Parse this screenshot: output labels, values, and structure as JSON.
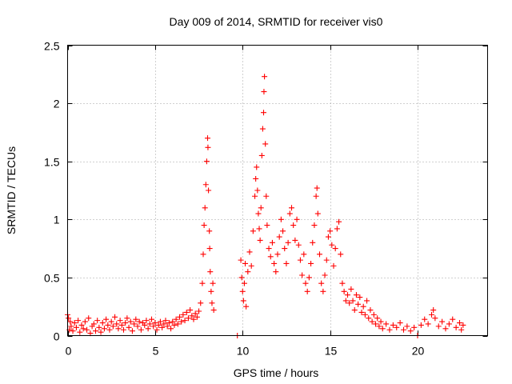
{
  "chart_data": {
    "type": "scatter",
    "title": "Day 009 of 2014, SRMTID for receiver vis0",
    "xlabel": "GPS time / hours",
    "ylabel": "SRMTID / TECUs",
    "xlim": [
      0,
      24
    ],
    "ylim": [
      0,
      2.5
    ],
    "x_ticks": [
      0,
      5,
      10,
      15,
      20
    ],
    "x_tick_labels": [
      "0",
      "5",
      "10",
      "15",
      "20"
    ],
    "y_ticks": [
      0,
      0.5,
      1,
      1.5,
      2,
      2.5
    ],
    "y_tick_labels": [
      "0",
      "0.5",
      "1",
      "1.5",
      "2",
      "2.5"
    ],
    "grid": true,
    "marker": "+",
    "series": [
      {
        "name": "SRMTID",
        "color": "#ff0000",
        "points": [
          [
            0.0,
            0.18
          ],
          [
            0.05,
            0.15
          ],
          [
            0.1,
            0.05
          ],
          [
            0.15,
            0.12
          ],
          [
            0.2,
            0.08
          ],
          [
            0.3,
            0.04
          ],
          [
            0.4,
            0.11
          ],
          [
            0.5,
            0.07
          ],
          [
            0.6,
            0.13
          ],
          [
            0.7,
            0.03
          ],
          [
            0.8,
            0.09
          ],
          [
            0.9,
            0.06
          ],
          [
            1.0,
            0.12
          ],
          [
            1.1,
            0.05
          ],
          [
            1.2,
            0.15
          ],
          [
            1.3,
            0.02
          ],
          [
            1.4,
            0.08
          ],
          [
            1.5,
            0.1
          ],
          [
            1.6,
            0.04
          ],
          [
            1.7,
            0.13
          ],
          [
            1.8,
            0.07
          ],
          [
            1.9,
            0.03
          ],
          [
            2.0,
            0.11
          ],
          [
            2.1,
            0.06
          ],
          [
            2.2,
            0.14
          ],
          [
            2.3,
            0.09
          ],
          [
            2.4,
            0.05
          ],
          [
            2.5,
            0.12
          ],
          [
            2.6,
            0.08
          ],
          [
            2.7,
            0.16
          ],
          [
            2.8,
            0.1
          ],
          [
            2.9,
            0.06
          ],
          [
            3.0,
            0.13
          ],
          [
            3.1,
            0.09
          ],
          [
            3.2,
            0.05
          ],
          [
            3.3,
            0.11
          ],
          [
            3.4,
            0.15
          ],
          [
            3.5,
            0.07
          ],
          [
            3.6,
            0.12
          ],
          [
            3.7,
            0.04
          ],
          [
            3.8,
            0.1
          ],
          [
            3.9,
            0.14
          ],
          [
            4.0,
            0.08
          ],
          [
            4.1,
            0.12
          ],
          [
            4.2,
            0.05
          ],
          [
            4.3,
            0.11
          ],
          [
            4.4,
            0.09
          ],
          [
            4.5,
            0.13
          ],
          [
            4.6,
            0.06
          ],
          [
            4.7,
            0.1
          ],
          [
            4.8,
            0.14
          ],
          [
            4.9,
            0.08
          ],
          [
            5.0,
            0.11
          ],
          [
            5.1,
            0.05
          ],
          [
            5.2,
            0.09
          ],
          [
            5.3,
            0.12
          ],
          [
            5.4,
            0.07
          ],
          [
            5.5,
            0.1
          ],
          [
            5.6,
            0.13
          ],
          [
            5.7,
            0.08
          ],
          [
            5.8,
            0.11
          ],
          [
            5.9,
            0.06
          ],
          [
            6.0,
            0.12
          ],
          [
            6.1,
            0.09
          ],
          [
            6.2,
            0.14
          ],
          [
            6.3,
            0.1
          ],
          [
            6.4,
            0.16
          ],
          [
            6.5,
            0.12
          ],
          [
            6.6,
            0.18
          ],
          [
            6.7,
            0.13
          ],
          [
            6.8,
            0.2
          ],
          [
            6.9,
            0.15
          ],
          [
            7.0,
            0.22
          ],
          [
            7.1,
            0.17
          ],
          [
            7.2,
            0.14
          ],
          [
            7.3,
            0.19
          ],
          [
            7.4,
            0.16
          ],
          [
            7.5,
            0.21
          ],
          [
            7.6,
            0.28
          ],
          [
            7.7,
            0.45
          ],
          [
            7.75,
            0.7
          ],
          [
            7.8,
            0.95
          ],
          [
            7.85,
            1.1
          ],
          [
            7.9,
            1.3
          ],
          [
            7.95,
            1.5
          ],
          [
            8.0,
            1.7
          ],
          [
            8.02,
            1.62
          ],
          [
            8.05,
            1.25
          ],
          [
            8.1,
            0.9
          ],
          [
            8.12,
            0.75
          ],
          [
            8.15,
            0.55
          ],
          [
            8.2,
            0.38
          ],
          [
            8.25,
            0.28
          ],
          [
            8.3,
            0.45
          ],
          [
            8.35,
            0.22
          ],
          [
            9.7,
            0.0
          ],
          [
            9.9,
            0.65
          ],
          [
            9.95,
            0.5
          ],
          [
            10.0,
            0.38
          ],
          [
            10.05,
            0.3
          ],
          [
            10.1,
            0.45
          ],
          [
            10.15,
            0.62
          ],
          [
            10.2,
            0.25
          ],
          [
            10.3,
            0.55
          ],
          [
            10.4,
            0.72
          ],
          [
            10.5,
            0.6
          ],
          [
            10.6,
            0.9
          ],
          [
            10.7,
            1.2
          ],
          [
            10.75,
            1.35
          ],
          [
            10.8,
            1.45
          ],
          [
            10.85,
            1.25
          ],
          [
            10.9,
            1.05
          ],
          [
            10.95,
            0.92
          ],
          [
            11.0,
            0.82
          ],
          [
            11.05,
            1.1
          ],
          [
            11.1,
            1.55
          ],
          [
            11.15,
            1.78
          ],
          [
            11.2,
            1.92
          ],
          [
            11.22,
            2.1
          ],
          [
            11.25,
            2.23
          ],
          [
            11.3,
            1.65
          ],
          [
            11.35,
            1.2
          ],
          [
            11.4,
            0.95
          ],
          [
            11.5,
            0.75
          ],
          [
            11.6,
            0.68
          ],
          [
            11.7,
            0.8
          ],
          [
            11.8,
            0.62
          ],
          [
            11.9,
            0.55
          ],
          [
            12.0,
            0.7
          ],
          [
            12.1,
            0.85
          ],
          [
            12.2,
            1.0
          ],
          [
            12.3,
            0.9
          ],
          [
            12.4,
            0.75
          ],
          [
            12.5,
            0.62
          ],
          [
            12.6,
            0.8
          ],
          [
            12.7,
            1.05
          ],
          [
            12.8,
            1.1
          ],
          [
            12.9,
            0.95
          ],
          [
            13.0,
            0.82
          ],
          [
            13.1,
            1.0
          ],
          [
            13.2,
            0.78
          ],
          [
            13.3,
            0.65
          ],
          [
            13.4,
            0.52
          ],
          [
            13.5,
            0.7
          ],
          [
            13.6,
            0.45
          ],
          [
            13.7,
            0.38
          ],
          [
            13.8,
            0.5
          ],
          [
            13.9,
            0.62
          ],
          [
            14.0,
            0.8
          ],
          [
            14.1,
            0.95
          ],
          [
            14.2,
            1.2
          ],
          [
            14.25,
            1.27
          ],
          [
            14.3,
            1.05
          ],
          [
            14.4,
            0.7
          ],
          [
            14.5,
            0.45
          ],
          [
            14.6,
            0.38
          ],
          [
            14.7,
            0.52
          ],
          [
            14.8,
            0.65
          ],
          [
            14.9,
            0.85
          ],
          [
            15.0,
            0.9
          ],
          [
            15.1,
            0.78
          ],
          [
            15.2,
            0.6
          ],
          [
            15.3,
            0.75
          ],
          [
            15.4,
            0.92
          ],
          [
            15.5,
            0.98
          ],
          [
            15.6,
            0.7
          ],
          [
            15.7,
            0.45
          ],
          [
            15.8,
            0.38
          ],
          [
            15.9,
            0.3
          ],
          [
            16.0,
            0.35
          ],
          [
            16.1,
            0.28
          ],
          [
            16.2,
            0.4
          ],
          [
            16.3,
            0.3
          ],
          [
            16.4,
            0.22
          ],
          [
            16.5,
            0.35
          ],
          [
            16.6,
            0.27
          ],
          [
            16.7,
            0.33
          ],
          [
            16.8,
            0.2
          ],
          [
            16.9,
            0.25
          ],
          [
            17.0,
            0.18
          ],
          [
            17.1,
            0.3
          ],
          [
            17.2,
            0.15
          ],
          [
            17.3,
            0.22
          ],
          [
            17.4,
            0.12
          ],
          [
            17.5,
            0.18
          ],
          [
            17.6,
            0.1
          ],
          [
            17.7,
            0.15
          ],
          [
            17.8,
            0.08
          ],
          [
            17.9,
            0.12
          ],
          [
            18.0,
            0.06
          ],
          [
            18.2,
            0.1
          ],
          [
            18.4,
            0.05
          ],
          [
            18.6,
            0.09
          ],
          [
            18.8,
            0.07
          ],
          [
            19.0,
            0.11
          ],
          [
            19.2,
            0.05
          ],
          [
            19.4,
            0.08
          ],
          [
            19.6,
            0.04
          ],
          [
            19.8,
            0.07
          ],
          [
            20.0,
            0.0
          ],
          [
            20.2,
            0.09
          ],
          [
            20.4,
            0.14
          ],
          [
            20.6,
            0.1
          ],
          [
            20.8,
            0.18
          ],
          [
            20.9,
            0.22
          ],
          [
            21.0,
            0.15
          ],
          [
            21.2,
            0.08
          ],
          [
            21.4,
            0.12
          ],
          [
            21.6,
            0.06
          ],
          [
            21.8,
            0.1
          ],
          [
            22.0,
            0.14
          ],
          [
            22.2,
            0.07
          ],
          [
            22.4,
            0.11
          ],
          [
            22.5,
            0.05
          ],
          [
            22.6,
            0.09
          ]
        ]
      }
    ]
  }
}
